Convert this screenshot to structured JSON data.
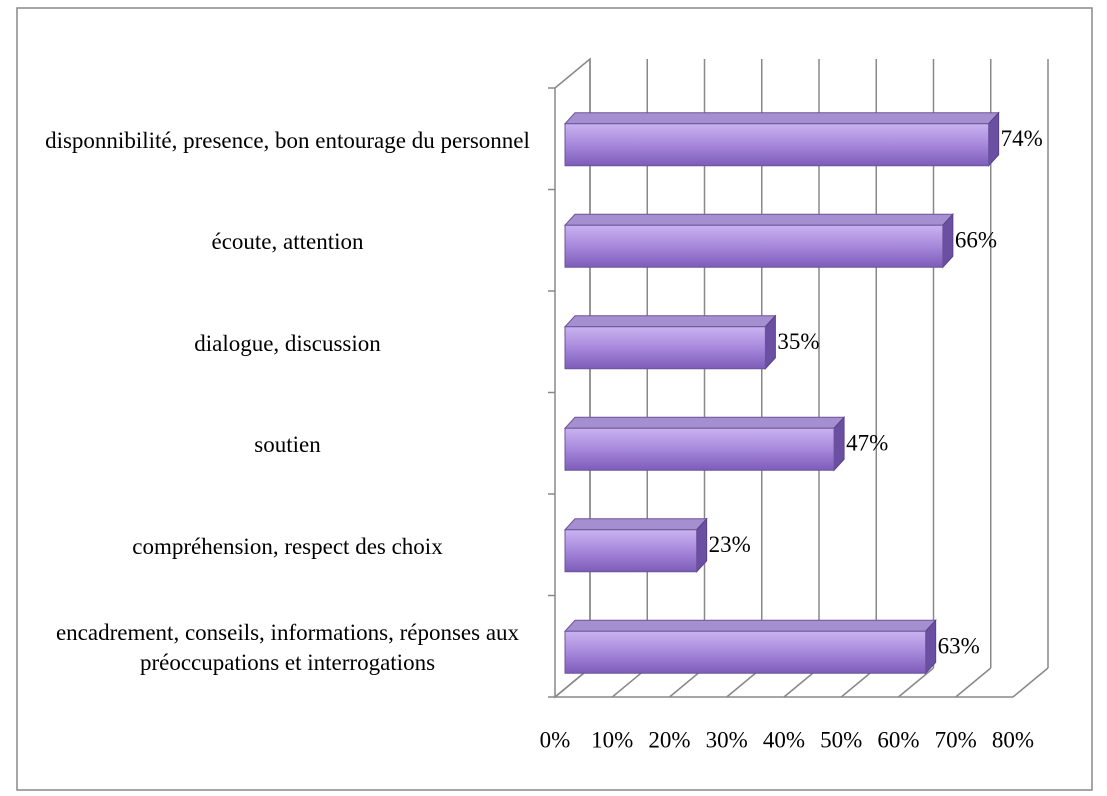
{
  "chart_data": {
    "type": "bar3d_horizontal",
    "categories": [
      "disponnibilité, presence, bon entourage du personnel",
      "écoute, attention",
      "dialogue, discussion",
      "soutien",
      "compréhension, respect des choix",
      "encadrement, conseils, informations, réponses aux préoccupations et interrogations"
    ],
    "values": [
      74,
      66,
      35,
      47,
      23,
      63
    ],
    "value_labels": [
      "74%",
      "66%",
      "35%",
      "47%",
      "23%",
      "63%"
    ],
    "color": "#9f7fd6",
    "xlim": [
      0,
      80
    ],
    "xticks": [
      {
        "value": 0,
        "label": "0%"
      },
      {
        "value": 10,
        "label": "10%"
      },
      {
        "value": 20,
        "label": "20%"
      },
      {
        "value": 30,
        "label": "30%"
      },
      {
        "value": 40,
        "label": "40%"
      },
      {
        "value": 50,
        "label": "50%"
      },
      {
        "value": 60,
        "label": "60%"
      },
      {
        "value": 70,
        "label": "70%"
      },
      {
        "value": 80,
        "label": "80%"
      }
    ],
    "grid": true
  }
}
